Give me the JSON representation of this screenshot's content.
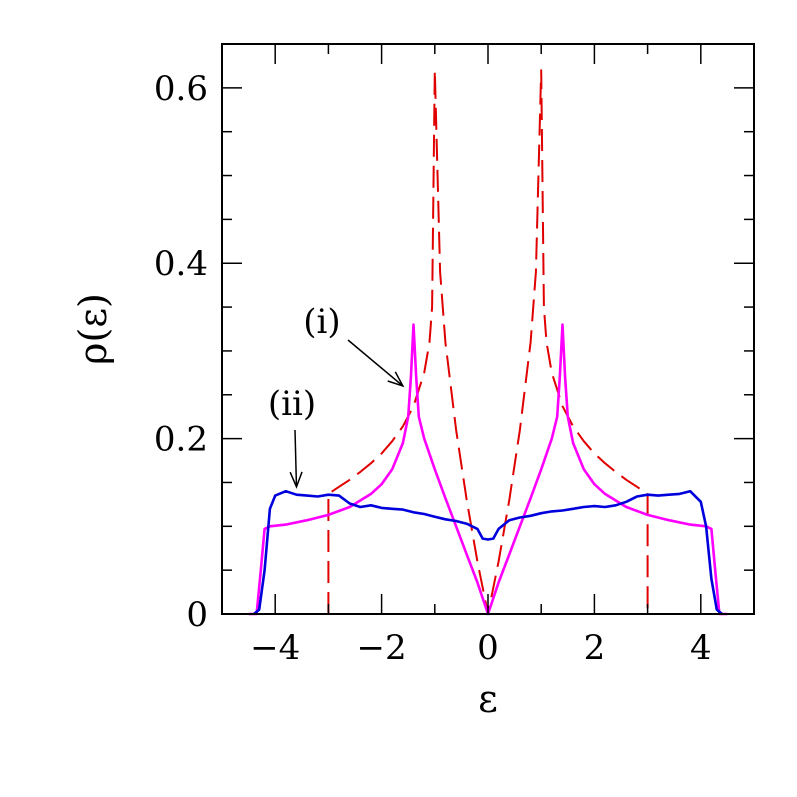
{
  "chart_data": {
    "type": "line",
    "xlabel": "ε",
    "ylabel": "ρ(ε)",
    "xlim": [
      -5,
      5
    ],
    "ylim": [
      0,
      0.65
    ],
    "x_ticks": [
      -4,
      -2,
      0,
      2,
      4
    ],
    "x_tick_labels": [
      "−4",
      "−2",
      "0",
      "2",
      "4"
    ],
    "y_ticks": [
      0,
      0.2,
      0.4,
      0.6
    ],
    "y_tick_labels": [
      "0",
      "0.2",
      "0.4",
      "0.6"
    ],
    "grid": false,
    "annotations": [
      {
        "text": "(i)",
        "target": [
          -1.6,
          0.26
        ]
      },
      {
        "text": "(ii)",
        "target": [
          -3.6,
          0.145
        ]
      }
    ],
    "series": [
      {
        "color": "#e00000",
        "style": "dashed",
        "x": [
          -3.0,
          -3.0,
          -2.8,
          -2.6,
          -2.4,
          -2.2,
          -2.0,
          -1.8,
          -1.6,
          -1.4,
          -1.2,
          -1.1,
          -1.05,
          -1.0,
          -1.0,
          -0.9,
          -0.8,
          -0.6,
          -0.4,
          -0.2,
          0.0,
          0.2,
          0.4,
          0.6,
          0.8,
          0.9,
          1.0,
          1.0,
          1.05,
          1.1,
          1.2,
          1.4,
          1.6,
          1.8,
          2.0,
          2.2,
          2.4,
          2.6,
          2.8,
          3.0,
          3.0
        ],
        "y": [
          0.0,
          0.137,
          0.145,
          0.153,
          0.162,
          0.172,
          0.183,
          0.197,
          0.214,
          0.237,
          0.275,
          0.31,
          0.35,
          0.62,
          0.62,
          0.39,
          0.31,
          0.21,
          0.13,
          0.06,
          0.0,
          0.06,
          0.13,
          0.21,
          0.31,
          0.39,
          0.62,
          0.62,
          0.35,
          0.31,
          0.275,
          0.237,
          0.214,
          0.197,
          0.183,
          0.172,
          0.162,
          0.153,
          0.145,
          0.137,
          0.0
        ]
      },
      {
        "color": "#ff00ff",
        "style": "solid",
        "x": [
          -4.5,
          -4.35,
          -4.27,
          -4.2,
          -4.1,
          -3.8,
          -3.4,
          -3.0,
          -2.6,
          -2.2,
          -2.0,
          -1.8,
          -1.6,
          -1.5,
          -1.45,
          -1.4,
          -1.35,
          -1.3,
          -1.2,
          -1.0,
          -0.8,
          -0.6,
          -0.4,
          -0.2,
          0.0,
          0.2,
          0.4,
          0.6,
          0.8,
          1.0,
          1.2,
          1.3,
          1.35,
          1.4,
          1.45,
          1.5,
          1.6,
          1.8,
          2.0,
          2.2,
          2.6,
          3.0,
          3.4,
          3.8,
          4.1,
          4.2,
          4.27,
          4.35,
          4.5
        ],
        "y": [
          0.0,
          0.0,
          0.05,
          0.097,
          0.1,
          0.102,
          0.107,
          0.113,
          0.122,
          0.137,
          0.148,
          0.165,
          0.195,
          0.225,
          0.27,
          0.33,
          0.27,
          0.225,
          0.2,
          0.165,
          0.132,
          0.1,
          0.068,
          0.036,
          0.0,
          0.036,
          0.068,
          0.1,
          0.132,
          0.165,
          0.2,
          0.225,
          0.27,
          0.33,
          0.27,
          0.225,
          0.195,
          0.165,
          0.148,
          0.137,
          0.122,
          0.113,
          0.107,
          0.102,
          0.1,
          0.097,
          0.05,
          0.0,
          0.0
        ]
      },
      {
        "color": "#0000dd",
        "style": "solid",
        "x": [
          -4.4,
          -4.3,
          -4.2,
          -4.1,
          -4.0,
          -3.8,
          -3.6,
          -3.4,
          -3.2,
          -3.0,
          -2.8,
          -2.6,
          -2.4,
          -2.2,
          -2.0,
          -1.8,
          -1.6,
          -1.4,
          -1.2,
          -1.0,
          -0.8,
          -0.6,
          -0.4,
          -0.2,
          -0.1,
          0.0,
          0.1,
          0.2,
          0.4,
          0.6,
          0.8,
          1.0,
          1.2,
          1.4,
          1.6,
          1.8,
          2.0,
          2.2,
          2.4,
          2.6,
          2.8,
          3.0,
          3.2,
          3.4,
          3.6,
          3.8,
          4.0,
          4.1,
          4.2,
          4.3,
          4.4
        ],
        "y": [
          0.0,
          0.005,
          0.05,
          0.12,
          0.135,
          0.14,
          0.136,
          0.135,
          0.134,
          0.136,
          0.135,
          0.126,
          0.122,
          0.124,
          0.121,
          0.12,
          0.119,
          0.116,
          0.114,
          0.111,
          0.108,
          0.106,
          0.103,
          0.097,
          0.086,
          0.085,
          0.086,
          0.097,
          0.107,
          0.11,
          0.112,
          0.115,
          0.117,
          0.118,
          0.12,
          0.122,
          0.123,
          0.122,
          0.124,
          0.128,
          0.134,
          0.136,
          0.135,
          0.136,
          0.137,
          0.14,
          0.128,
          0.1,
          0.04,
          0.005,
          0.0
        ]
      }
    ]
  }
}
